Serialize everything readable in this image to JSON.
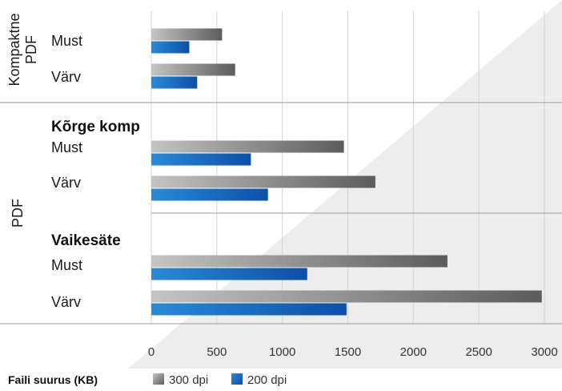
{
  "chart_data": {
    "type": "bar",
    "orientation": "horizontal",
    "xlabel": "Faili suurus (KB)",
    "xlim": [
      0,
      3000
    ],
    "xticks": [
      "0",
      "500",
      "1000",
      "1500",
      "2000",
      "2500",
      "3000"
    ],
    "grid": true,
    "legend": {
      "placement": "bottom",
      "entries": [
        {
          "label": "300 dpi",
          "color": "#7a7a7a"
        },
        {
          "label": "200 dpi",
          "color": "#1565c0"
        }
      ]
    },
    "groups": [
      {
        "label_line1": "Kompaktne",
        "label_line2": "PDF",
        "sections": [
          {
            "title": "",
            "rows": [
              {
                "label": "Must",
                "values": [
                  540,
                  290
                ]
              },
              {
                "label": "Värv",
                "values": [
                  640,
                  350
                ]
              }
            ]
          }
        ]
      },
      {
        "label_line1": "PDF",
        "label_line2": "",
        "sections": [
          {
            "title": "Kõrge komp",
            "rows": [
              {
                "label": "Must",
                "values": [
                  1470,
                  760
                ]
              },
              {
                "label": "Värv",
                "values": [
                  1710,
                  890
                ]
              }
            ]
          },
          {
            "title": "Vaikesäte",
            "rows": [
              {
                "label": "Must",
                "values": [
                  2260,
                  1190
                ]
              },
              {
                "label": "Värv",
                "values": [
                  2980,
                  1490
                ]
              }
            ]
          }
        ]
      }
    ],
    "series": [
      {
        "name": "300 dpi",
        "values": [
          540,
          640,
          1470,
          1710,
          2260,
          2980
        ]
      },
      {
        "name": "200 dpi",
        "values": [
          290,
          350,
          760,
          890,
          1190,
          1490
        ]
      }
    ]
  }
}
